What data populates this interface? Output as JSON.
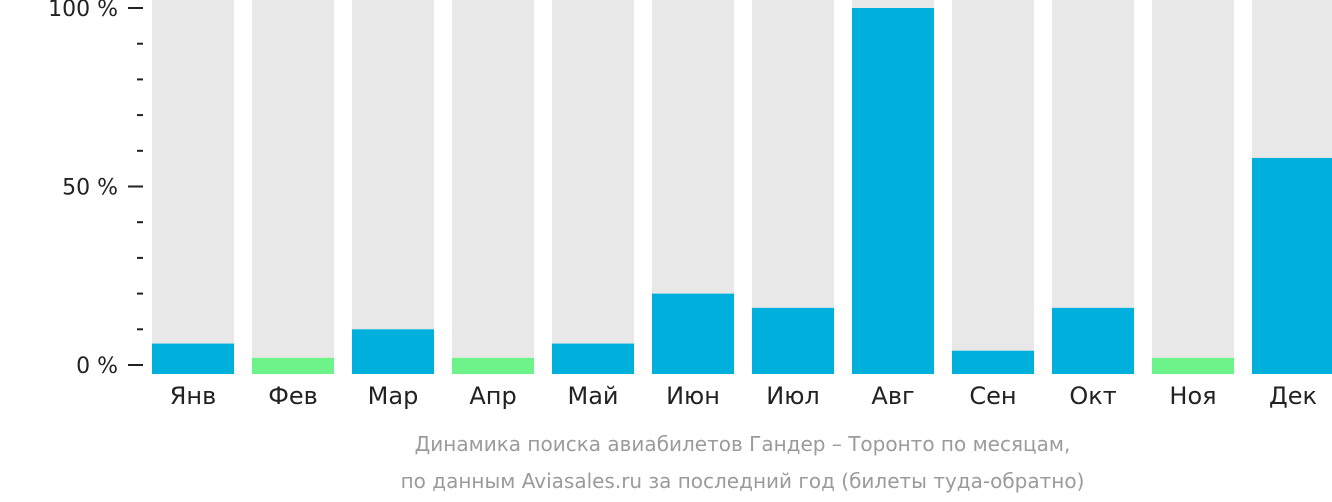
{
  "chart_data": {
    "type": "bar",
    "categories": [
      "Янв",
      "Фев",
      "Мар",
      "Апр",
      "Май",
      "Июн",
      "Июл",
      "Авг",
      "Сен",
      "Окт",
      "Ноя",
      "Дек"
    ],
    "values": [
      6,
      2,
      10,
      2,
      6,
      20,
      16,
      100,
      4,
      16,
      2,
      58
    ],
    "ylim": [
      0,
      100
    ],
    "y_ticks": [
      {
        "value": 0,
        "label": "0 %"
      },
      {
        "value": 50,
        "label": "50 %"
      },
      {
        "value": 100,
        "label": "100 %"
      }
    ],
    "minor_tick_step": 10,
    "grid": false,
    "legend": "none",
    "title_lines": [
      "Динамика поиска авиабилетов Гандер – Торонто по месяцам,",
      "по данным Aviasales.ru за последний год (билеты туда-обратно)"
    ],
    "colors": {
      "bar": "#00b0dc",
      "bar_low": "#6cf38a",
      "track": "#e8e8e8",
      "axis": "#222222",
      "caption": "#9b9b9b"
    },
    "low_value_threshold": 3
  }
}
